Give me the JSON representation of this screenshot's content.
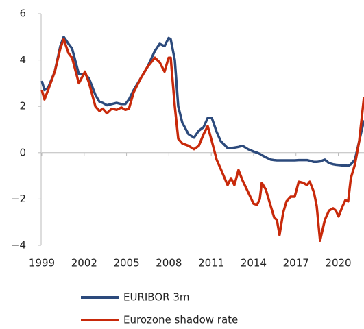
{
  "chart_data": {
    "type": "line",
    "x": [
      1999.0,
      1999.19,
      1999.44,
      1999.92,
      2000.31,
      2000.55,
      2000.89,
      2001.14,
      2001.62,
      2002.06,
      2002.35,
      2002.79,
      2003.08,
      2003.32,
      2003.61,
      2003.95,
      2004.29,
      2004.63,
      2004.92,
      2005.17,
      2005.5,
      2005.99,
      2006.48,
      2007.01,
      2007.35,
      2007.69,
      2007.98,
      2008.13,
      2008.42,
      2008.66,
      2008.95,
      2009.39,
      2009.78,
      2010.12,
      2010.46,
      2010.75,
      2011.04,
      2011.38,
      2011.67,
      2012.16,
      2012.4,
      2012.64,
      2012.93,
      2013.22,
      2013.61,
      2014.0,
      2014.24,
      2014.44,
      2014.58,
      2014.87,
      2015.21,
      2015.46,
      2015.65,
      2015.84,
      2016.09,
      2016.33,
      2016.62,
      2016.91,
      2017.2,
      2017.5,
      2017.79,
      2017.98,
      2018.27,
      2018.47,
      2018.71,
      2019.05,
      2019.34,
      2019.63,
      2019.83,
      2020.02,
      2020.31,
      2020.5,
      2020.7,
      2020.89,
      2021.18,
      2021.48,
      2021.82
    ],
    "series": [
      {
        "name": "EURIBOR 3m",
        "color": "#2c4a7c",
        "values": [
          3.1,
          2.7,
          2.8,
          3.5,
          4.6,
          5.0,
          4.7,
          4.5,
          3.4,
          3.4,
          3.2,
          2.5,
          2.2,
          2.15,
          2.05,
          2.1,
          2.15,
          2.1,
          2.1,
          2.3,
          2.7,
          3.2,
          3.7,
          4.4,
          4.7,
          4.6,
          4.95,
          4.9,
          4.0,
          2.0,
          1.3,
          0.8,
          0.65,
          0.95,
          1.1,
          1.5,
          1.5,
          0.9,
          0.5,
          0.2,
          0.2,
          0.22,
          0.25,
          0.3,
          0.15,
          0.05,
          0.0,
          -0.05,
          -0.1,
          -0.2,
          -0.3,
          -0.32,
          -0.33,
          -0.33,
          -0.33,
          -0.33,
          -0.33,
          -0.33,
          -0.32,
          -0.32,
          -0.32,
          -0.35,
          -0.4,
          -0.4,
          -0.38,
          -0.3,
          -0.45,
          -0.5,
          -0.52,
          -0.53,
          -0.55,
          -0.55,
          -0.57,
          -0.5,
          -0.3,
          0.5,
          1.4
        ]
      },
      {
        "name": "Eurozone shadow rate",
        "color": "#c8290a",
        "values": [
          2.7,
          2.3,
          2.7,
          3.5,
          4.5,
          4.9,
          4.3,
          4.1,
          3.0,
          3.5,
          3.0,
          2.0,
          1.8,
          1.9,
          1.7,
          1.9,
          1.85,
          1.95,
          1.85,
          1.9,
          2.6,
          3.2,
          3.7,
          4.1,
          3.9,
          3.5,
          4.1,
          4.1,
          2.0,
          0.6,
          0.4,
          0.3,
          0.15,
          0.3,
          0.8,
          1.15,
          0.5,
          -0.3,
          -0.7,
          -1.4,
          -1.1,
          -1.4,
          -0.75,
          -1.2,
          -1.7,
          -2.2,
          -2.25,
          -2.0,
          -1.3,
          -1.6,
          -2.3,
          -2.8,
          -2.9,
          -3.55,
          -2.6,
          -2.1,
          -1.9,
          -1.9,
          -1.25,
          -1.3,
          -1.4,
          -1.25,
          -1.7,
          -2.3,
          -3.8,
          -2.9,
          -2.5,
          -2.4,
          -2.5,
          -2.75,
          -2.3,
          -2.05,
          -2.1,
          -1.1,
          -0.5,
          0.5,
          2.4
        ]
      }
    ],
    "xlim": [
      1999.0,
      2021.82
    ],
    "xticks": [
      1999,
      2002,
      2005,
      2008,
      2011,
      2014,
      2017,
      2020
    ],
    "ylim": [
      -4,
      6
    ],
    "yticks": [
      {
        "value": -4,
        "label": "−4"
      },
      {
        "value": -2,
        "label": "−2"
      },
      0,
      2,
      4,
      6
    ]
  }
}
